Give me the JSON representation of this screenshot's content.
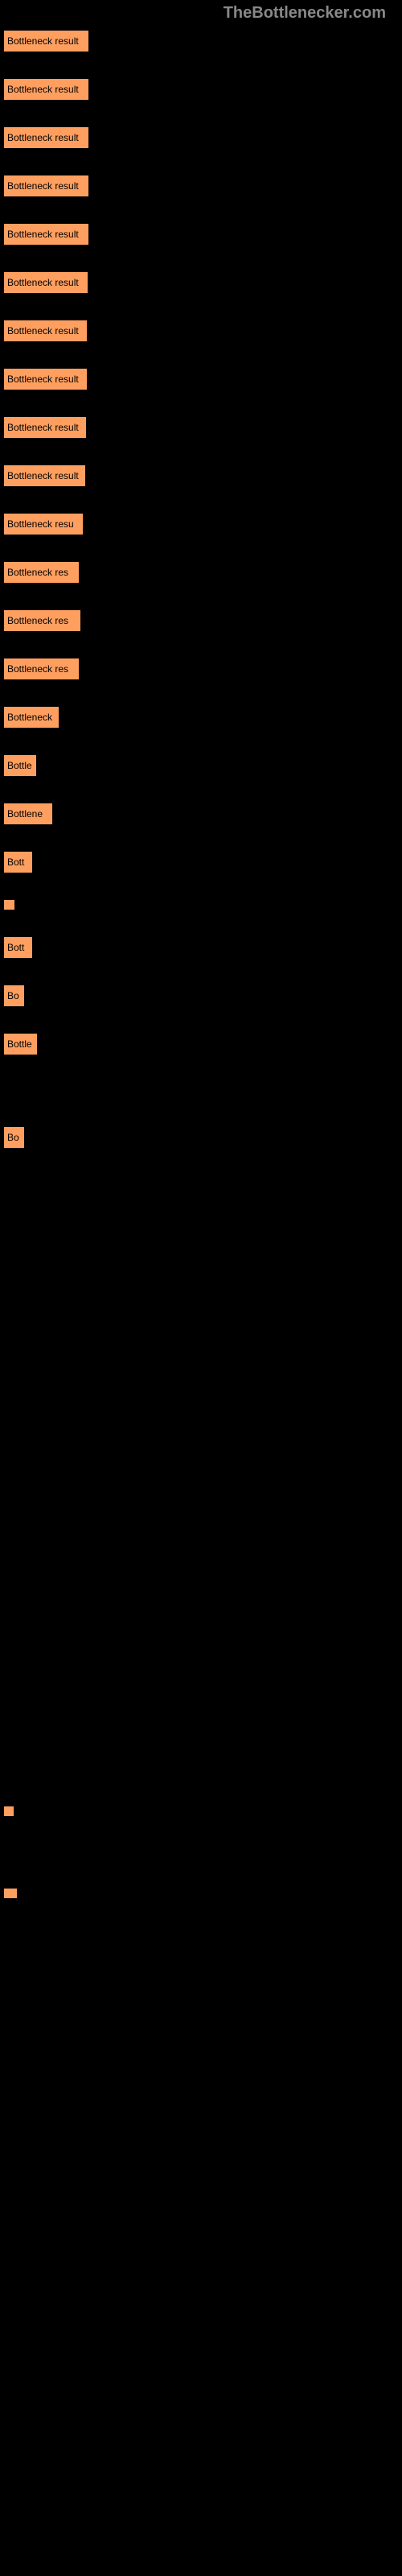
{
  "header_text": "TheBottlenecker.com",
  "chart": {
    "type": "horizontal-bar",
    "background_color": "#000000",
    "bar_color": "#ff9f5f",
    "bar_text_color": "#000000",
    "bar_label": "Bottleneck result",
    "bars": [
      {
        "width": 97,
        "label": "Bottleneck result"
      },
      {
        "width": 97,
        "label": "Bottleneck result"
      },
      {
        "width": 97,
        "label": "Bottleneck result"
      },
      {
        "width": 97,
        "label": "Bottleneck result"
      },
      {
        "width": 97,
        "label": "Bottleneck result"
      },
      {
        "width": 96,
        "label": "Bottleneck result"
      },
      {
        "width": 95,
        "label": "Bottleneck result"
      },
      {
        "width": 95,
        "label": "Bottleneck result"
      },
      {
        "width": 94,
        "label": "Bottleneck result"
      },
      {
        "width": 93,
        "label": "Bottleneck result"
      },
      {
        "width": 90,
        "label": "Bottleneck resu"
      },
      {
        "width": 85,
        "label": "Bottleneck res"
      },
      {
        "width": 87,
        "label": "Bottleneck res"
      },
      {
        "width": 85,
        "label": "Bottleneck res"
      },
      {
        "width": 60,
        "label": "Bottleneck"
      },
      {
        "width": 32,
        "label": "Bottle"
      },
      {
        "width": 52,
        "label": "Bottlene"
      },
      {
        "width": 27,
        "label": "Bott"
      },
      {
        "width": 5,
        "label": ""
      },
      {
        "width": 27,
        "label": "Bott"
      },
      {
        "width": 17,
        "label": "Bo"
      },
      {
        "width": 33,
        "label": "Bottle"
      },
      {
        "width": 0,
        "label": ""
      },
      {
        "width": 17,
        "label": "Bo"
      },
      {
        "width": 0,
        "label": ""
      },
      {
        "width": 0,
        "label": ""
      },
      {
        "width": 0,
        "label": ""
      },
      {
        "width": 0,
        "label": ""
      },
      {
        "width": 0,
        "label": ""
      },
      {
        "width": 0,
        "label": ""
      },
      {
        "width": 0,
        "label": ""
      },
      {
        "width": 0,
        "label": ""
      },
      {
        "width": 0,
        "label": ""
      },
      {
        "width": 0,
        "label": ""
      },
      {
        "width": 0,
        "label": ""
      },
      {
        "width": 0,
        "label": ""
      },
      {
        "width": 0,
        "label": ""
      },
      {
        "width": 0,
        "label": ""
      },
      {
        "width": 4,
        "label": ""
      },
      {
        "width": 0,
        "label": ""
      },
      {
        "width": 8,
        "label": ""
      }
    ]
  }
}
